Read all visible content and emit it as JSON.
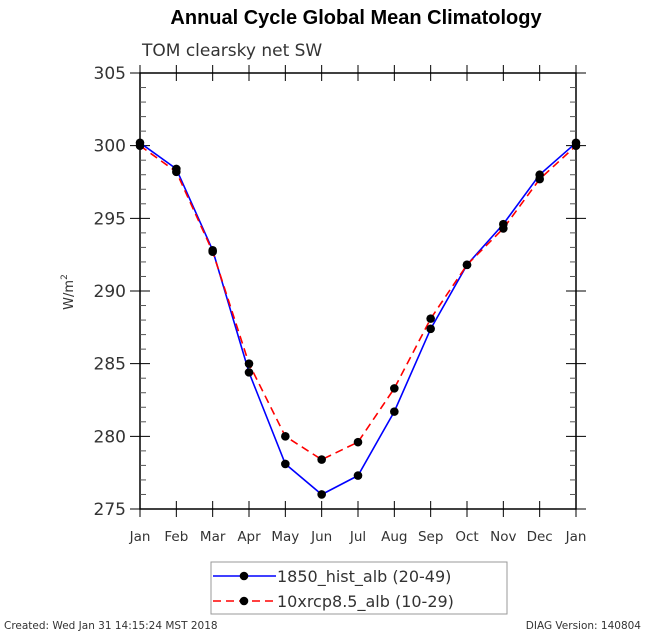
{
  "chart_data": {
    "type": "line",
    "title": "Annual Cycle Global Mean Climatology",
    "subtitle": "TOM clearsky net SW",
    "xlabel": "",
    "ylabel": "W/m2",
    "ylabel_base": "W/m",
    "ylabel_sup": "2",
    "categories": [
      "Jan",
      "Feb",
      "Mar",
      "Apr",
      "May",
      "Jun",
      "Jul",
      "Aug",
      "Sep",
      "Oct",
      "Nov",
      "Dec",
      "Jan"
    ],
    "ylim": [
      275,
      305
    ],
    "yticks": [
      275,
      280,
      285,
      290,
      295,
      300,
      305
    ],
    "yminor_step": 1,
    "grid": false,
    "legend_position": "bottom-center",
    "series": [
      {
        "name": "1850_hist_alb (20-49)",
        "color": "#0000ff",
        "linestyle": "solid",
        "marker": "circle",
        "values": [
          300.2,
          298.4,
          292.8,
          284.4,
          278.1,
          276.0,
          277.3,
          281.7,
          287.4,
          291.8,
          294.6,
          298.0,
          300.2
        ]
      },
      {
        "name": "10xrcp8.5_alb (10-29)",
        "color": "#ff0000",
        "linestyle": "dashed",
        "marker": "circle",
        "values": [
          300.0,
          298.2,
          292.7,
          285.0,
          280.0,
          278.4,
          279.6,
          283.3,
          288.1,
          291.8,
          294.3,
          297.7,
          300.0
        ]
      }
    ]
  },
  "footer": {
    "created": "Created: Wed Jan 31 14:15:24 MST 2018",
    "version": "DIAG Version: 140804"
  }
}
